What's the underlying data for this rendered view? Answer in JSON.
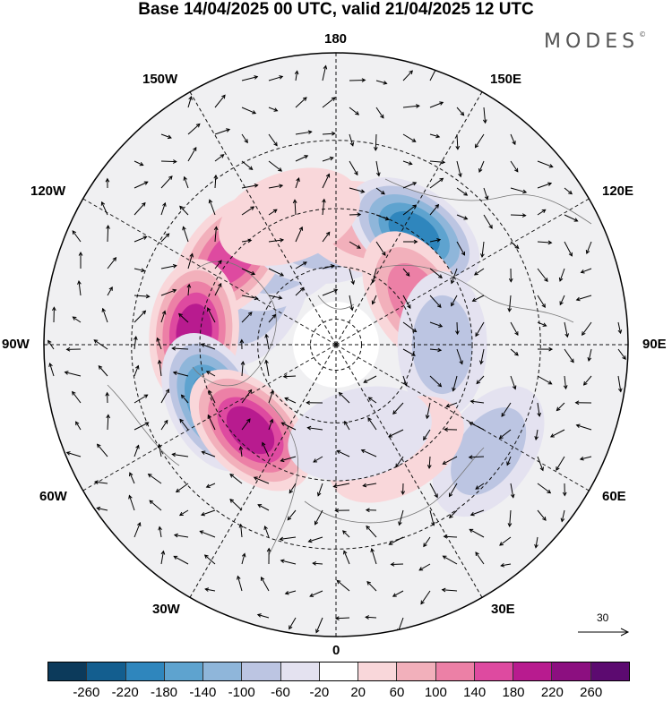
{
  "title": "Base 14/04/2025 00 UTC, valid 21/04/2025 12 UTC",
  "brand": "MODES",
  "brand_mark": "©",
  "longitude_labels": {
    "top": "180",
    "bottom": "0",
    "left": "90W",
    "right": "90E",
    "upper_left": "150W",
    "upper_right": "150E",
    "mid_upper_left": "120W",
    "mid_upper_right": "120E",
    "lower_left": "60W",
    "lower_right": "60E",
    "bottom_left": "30W",
    "bottom_right": "30E"
  },
  "reference_vector": "30",
  "colorbar": {
    "ticks": [
      "-260",
      "-220",
      "-180",
      "-140",
      "-100",
      "-60",
      "-20",
      "20",
      "60",
      "100",
      "140",
      "180",
      "220",
      "260"
    ],
    "colors": [
      "#0c3a5b",
      "#135e8f",
      "#2f86bd",
      "#5ea3cf",
      "#8fb6da",
      "#bcc5e2",
      "#e4e2f0",
      "#ffffff",
      "#f9d7da",
      "#f2b0bb",
      "#ec80a6",
      "#de4aa0",
      "#b81b8f",
      "#8c0f80",
      "#5c0a70"
    ]
  },
  "anomalies": [
    {
      "lon": -120,
      "lat": 55,
      "value": -110
    },
    {
      "lon": -150,
      "lat": 52,
      "value": -80
    },
    {
      "lon": -130,
      "lat": 40,
      "value": 160
    },
    {
      "lon": -175,
      "lat": 50,
      "value": -90
    },
    {
      "lon": 165,
      "lat": 45,
      "value": 100
    },
    {
      "lon": 145,
      "lat": 40,
      "value": -210
    },
    {
      "lon": 120,
      "lat": 55,
      "value": 120
    },
    {
      "lon": 90,
      "lat": 50,
      "value": -90
    },
    {
      "lon": -95,
      "lat": 38,
      "value": 200
    },
    {
      "lon": -65,
      "lat": 40,
      "value": -200
    },
    {
      "lon": -45,
      "lat": 45,
      "value": 220
    },
    {
      "lon": 55,
      "lat": 25,
      "value": -100
    },
    {
      "lon": 30,
      "lat": 45,
      "value": 60
    },
    {
      "lon": 15,
      "lat": 55,
      "value": -40
    },
    {
      "lon": -160,
      "lat": 40,
      "value": 70
    }
  ]
}
